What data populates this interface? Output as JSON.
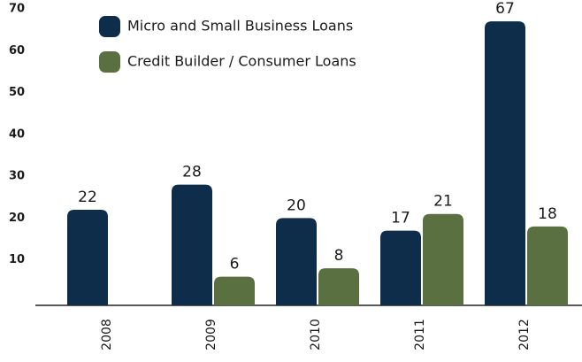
{
  "chart_data": {
    "type": "bar",
    "categories": [
      "2008",
      "2009",
      "2010",
      "2011",
      "2012"
    ],
    "series": [
      {
        "name": "Micro and Small Business Loans",
        "color": "#0d2d4a",
        "values": [
          22,
          28,
          20,
          17,
          67
        ]
      },
      {
        "name": "Credit Builder / Consumer Loans",
        "color": "#5a7040",
        "values": [
          null,
          6,
          8,
          21,
          18
        ]
      }
    ],
    "ylim": [
      0,
      70
    ],
    "yticks": [
      10,
      20,
      30,
      40,
      50,
      60,
      70
    ],
    "grid": false,
    "legend": "top-left"
  }
}
